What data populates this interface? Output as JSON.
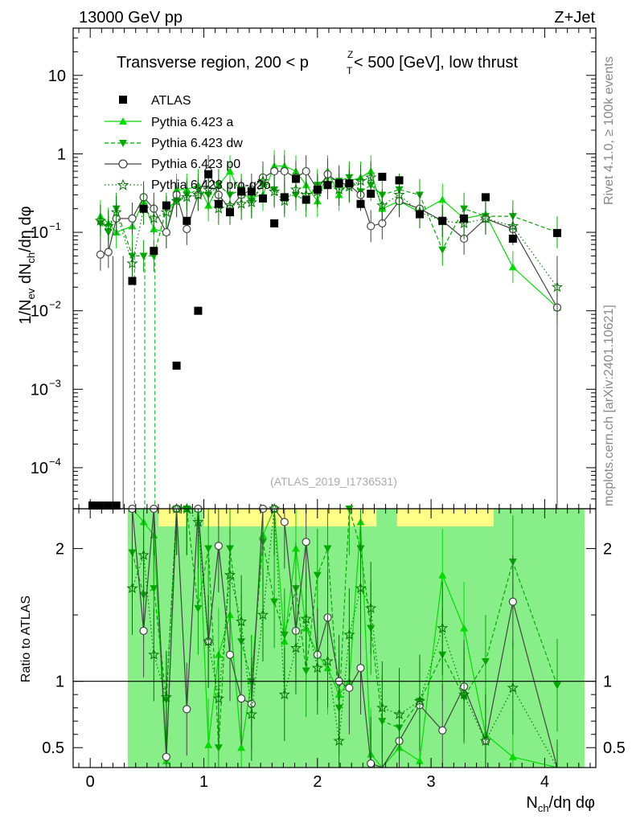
{
  "header": {
    "left": "13000 GeV pp",
    "right": "Z+Jet"
  },
  "side_labels": {
    "upper": "Rivet 4.1.0, ≥ 100k events",
    "lower": "mcplots.cern.ch [arXiv:2401.10621]"
  },
  "colors": {
    "atlas": "#000000",
    "a": "#00dd00",
    "dw": "#00aa00",
    "p0": "#444444",
    "pro_q2o": "#007700",
    "band_yellow": "#ffff88",
    "band_green": "#88ee88"
  },
  "chart_data": [
    {
      "type": "scatter",
      "title": "Transverse region, 200 < p_T^Z < 500 [GeV], low thrust",
      "title_main": "Transverse region, 200 < p",
      "title_sup": "Z",
      "title_sub": "T",
      "title_tail": " < 500 [GeV], low thrust",
      "analysis": "(ATLAS_2019_I1736531)",
      "ylabel": "1/N_ev dN_ch/dη dφ",
      "yscale": "log",
      "xlim": [
        -0.15,
        4.45
      ],
      "ylim": [
        3e-05,
        40
      ],
      "x_ticks": [
        0,
        1,
        2,
        3,
        4
      ],
      "y_tick_labels": [
        {
          "value": 10,
          "mantissa": "10",
          "exp": ""
        },
        {
          "value": 1,
          "mantissa": "1",
          "exp": ""
        },
        {
          "value": 0.1,
          "mantissa": "10",
          "exp": "−1"
        },
        {
          "value": 0.01,
          "mantissa": "10",
          "exp": "−2"
        },
        {
          "value": 0.001,
          "mantissa": "10",
          "exp": "−3"
        },
        {
          "value": 0.0001,
          "mantissa": "10",
          "exp": "−4"
        }
      ],
      "legend": [
        "ATLAS",
        "Pythia 6.423 a",
        "Pythia 6.423 dw",
        "Pythia 6.423 p0",
        "Pythia 6.423 pro-q2o"
      ],
      "x": [
        0.02,
        0.09,
        0.16,
        0.23,
        0.37,
        0.47,
        0.56,
        0.67,
        0.76,
        0.85,
        0.95,
        1.04,
        1.13,
        1.23,
        1.33,
        1.42,
        1.52,
        1.62,
        1.71,
        1.81,
        1.9,
        2.0,
        2.09,
        2.19,
        2.28,
        2.38,
        2.47,
        2.57,
        2.72,
        2.9,
        3.1,
        3.29,
        3.48,
        3.72,
        4.11
      ],
      "series": [
        {
          "name": "ATLAS",
          "values": [
            2.62e-05,
            2.62e-05,
            2.62e-05,
            2.62e-05,
            0.024,
            0.2,
            0.058,
            0.22,
            0.002,
            0.14,
            0.01,
            0.55,
            0.23,
            0.18,
            0.33,
            0.33,
            0.27,
            0.13,
            0.28,
            0.48,
            0.26,
            0.35,
            0.4,
            0.42,
            0.42,
            0.23,
            0.31,
            0.51,
            0.46,
            0.17,
            0.14,
            0.15,
            0.28,
            0.083,
            0.098
          ]
        },
        {
          "name": "Pythia 6.423 a",
          "values": [
            null,
            0.16,
            0.13,
            0.1,
            0.12,
            0.25,
            0.11,
            0.1,
            0.35,
            0.35,
            0.4,
            0.22,
            0.4,
            0.6,
            0.3,
            0.28,
            0.3,
            0.7,
            0.7,
            0.6,
            0.4,
            0.25,
            0.6,
            0.3,
            0.45,
            0.5,
            0.6,
            0.2,
            0.25,
            0.18,
            0.26,
            0.15,
            0.17,
            0.036,
            0.011
          ]
        },
        {
          "name": "Pythia 6.423 dw",
          "values": [
            null,
            0.13,
            0.1,
            0.2,
            0.05,
            0.05,
            0.05,
            0.2,
            0.25,
            0.3,
            0.35,
            0.3,
            0.4,
            0.3,
            0.35,
            0.25,
            0.4,
            0.35,
            0.28,
            0.3,
            0.25,
            0.4,
            0.5,
            0.45,
            0.5,
            0.33,
            0.4,
            0.3,
            0.35,
            0.3,
            0.06,
            0.2,
            0.16,
            0.16,
            0.1
          ]
        },
        {
          "name": "Pythia 6.423 p0",
          "values": [
            null,
            0.052,
            0.056,
            0.15,
            0.15,
            0.28,
            0.2,
            0.1,
            0.3,
            0.11,
            0.3,
            0.6,
            0.3,
            0.2,
            0.3,
            0.35,
            0.5,
            0.6,
            0.6,
            0.5,
            0.6,
            0.35,
            0.55,
            0.43,
            0.4,
            0.3,
            0.12,
            0.13,
            0.25,
            0.2,
            0.14,
            0.083,
            0.15,
            0.11,
            0.011
          ]
        },
        {
          "name": "Pythia 6.423 pro-q2o",
          "values": [
            null,
            0.14,
            0.12,
            0.18,
            0.04,
            0.2,
            0.15,
            0.18,
            0.25,
            0.28,
            0.3,
            0.35,
            0.2,
            0.22,
            0.23,
            0.24,
            0.45,
            0.33,
            0.25,
            0.35,
            0.3,
            0.33,
            0.42,
            0.35,
            0.38,
            0.45,
            0.5,
            0.22,
            0.3,
            0.18,
            0.14,
            0.13,
            0.15,
            0.12,
            0.02
          ]
        }
      ]
    },
    {
      "type": "line",
      "ylabel": "Ratio to ATLAS",
      "xlabel": "N_ch/dη dφ",
      "xlim": [
        -0.15,
        4.45
      ],
      "ylim": [
        0.35,
        2.3
      ],
      "reference_line": 1,
      "y_ticks": [
        0.5,
        1,
        2
      ],
      "y_tick_labels": [
        "0.5",
        "1",
        "2"
      ],
      "x_ticks": [
        0,
        1,
        2,
        3,
        4
      ],
      "x_tick_labels": [
        "0",
        "1",
        "2",
        "3",
        "4"
      ],
      "band_start": 0.33,
      "band_end": 4.35,
      "x": [
        0.37,
        0.47,
        0.56,
        0.67,
        0.76,
        0.85,
        0.95,
        1.04,
        1.13,
        1.23,
        1.33,
        1.42,
        1.52,
        1.62,
        1.71,
        1.81,
        1.9,
        2.0,
        2.09,
        2.19,
        2.28,
        2.38,
        2.47,
        2.57,
        2.72,
        2.9,
        3.1,
        3.29,
        3.48,
        3.72,
        4.11
      ],
      "series": [
        {
          "name": "Pythia 6.423 a",
          "values": [
            2.3,
            2.2,
            2.1,
            0.4,
            2.3,
            2.3,
            2.3,
            0.52,
            1.2,
            1.5,
            0.5,
            1.0,
            2.1,
            2.3,
            1.3,
            2.0,
            1.4,
            1.2,
            1.1,
            0.9,
            1.0,
            2.2,
            0.45,
            0.3,
            0.5,
            0.4,
            1.8,
            1.4,
            0.6,
            0.43,
            0.1
          ]
        },
        {
          "name": "Pythia 6.423 dw",
          "values": [
            1.97,
            1.65,
            1.7,
            0.86,
            2.3,
            2.3,
            1.55,
            2.0,
            0.5,
            2.0,
            1.3,
            1.0,
            2.05,
            1.6,
            1.35,
            1.7,
            1.08,
            1.8,
            2.0,
            0.8,
            2.3,
            2.0,
            1.4,
            0.7,
            0.65,
            0.85,
            1.2,
            0.88,
            1.15,
            1.9,
            0.97
          ]
        },
        {
          "name": "Pythia 6.423 p0",
          "values": [
            2.3,
            1.38,
            2.3,
            0.43,
            2.3,
            0.79,
            2.3,
            1.3,
            2.02,
            1.2,
            0.87,
            0.83,
            2.3,
            2.3,
            2.2,
            1.38,
            2.05,
            1.2,
            1.48,
            1.0,
            0.95,
            1.1,
            0.38,
            0.28,
            0.55,
            0.82,
            0.63,
            0.96,
            0.55,
            1.6,
            0.11
          ]
        },
        {
          "name": "Pythia 6.423 pro-q2o",
          "values": [
            1.7,
            1.95,
            1.2,
            0.88,
            2.3,
            2.3,
            2.2,
            1.3,
            0.87,
            1.8,
            1.45,
            0.75,
            1.5,
            2.3,
            0.9,
            1.25,
            1.47,
            1.1,
            1.15,
            0.55,
            1.35,
            1.7,
            1.55,
            0.8,
            0.75,
            0.85,
            1.4,
            0.9,
            0.55,
            0.95,
            0.21
          ]
        }
      ]
    }
  ]
}
